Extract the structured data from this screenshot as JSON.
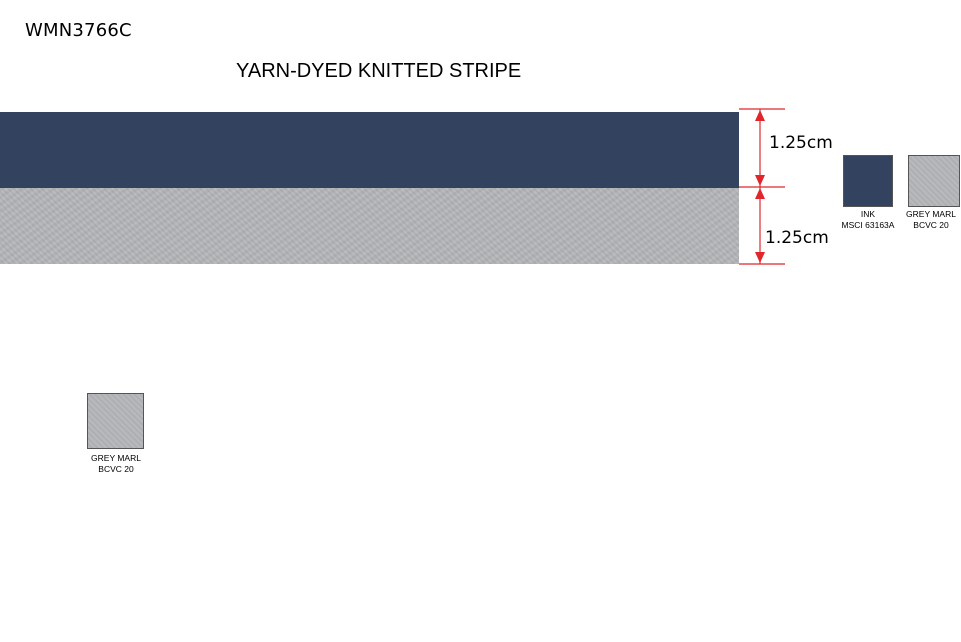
{
  "header": {
    "code": "WMN3766C",
    "title": "YARN-DYED KNITTED STRIPE"
  },
  "stripes": [
    {
      "name": "INK",
      "width_label": "1.25cm",
      "color": "#33425f"
    },
    {
      "name": "GREY MARL",
      "width_label": "1.25cm",
      "color": "#b3b5b8"
    }
  ],
  "dimension_marker_color": "#e0262b",
  "swatches": [
    {
      "line1": "INK",
      "line2": "MSCI 63163A",
      "color": "#33425f"
    },
    {
      "line1": "GREY MARL",
      "line2": "BCVC 20",
      "color": "#b3b5b8"
    },
    {
      "line1": "GREY MARL",
      "line2": "BCVC 20",
      "color": "#b3b5b8"
    }
  ]
}
